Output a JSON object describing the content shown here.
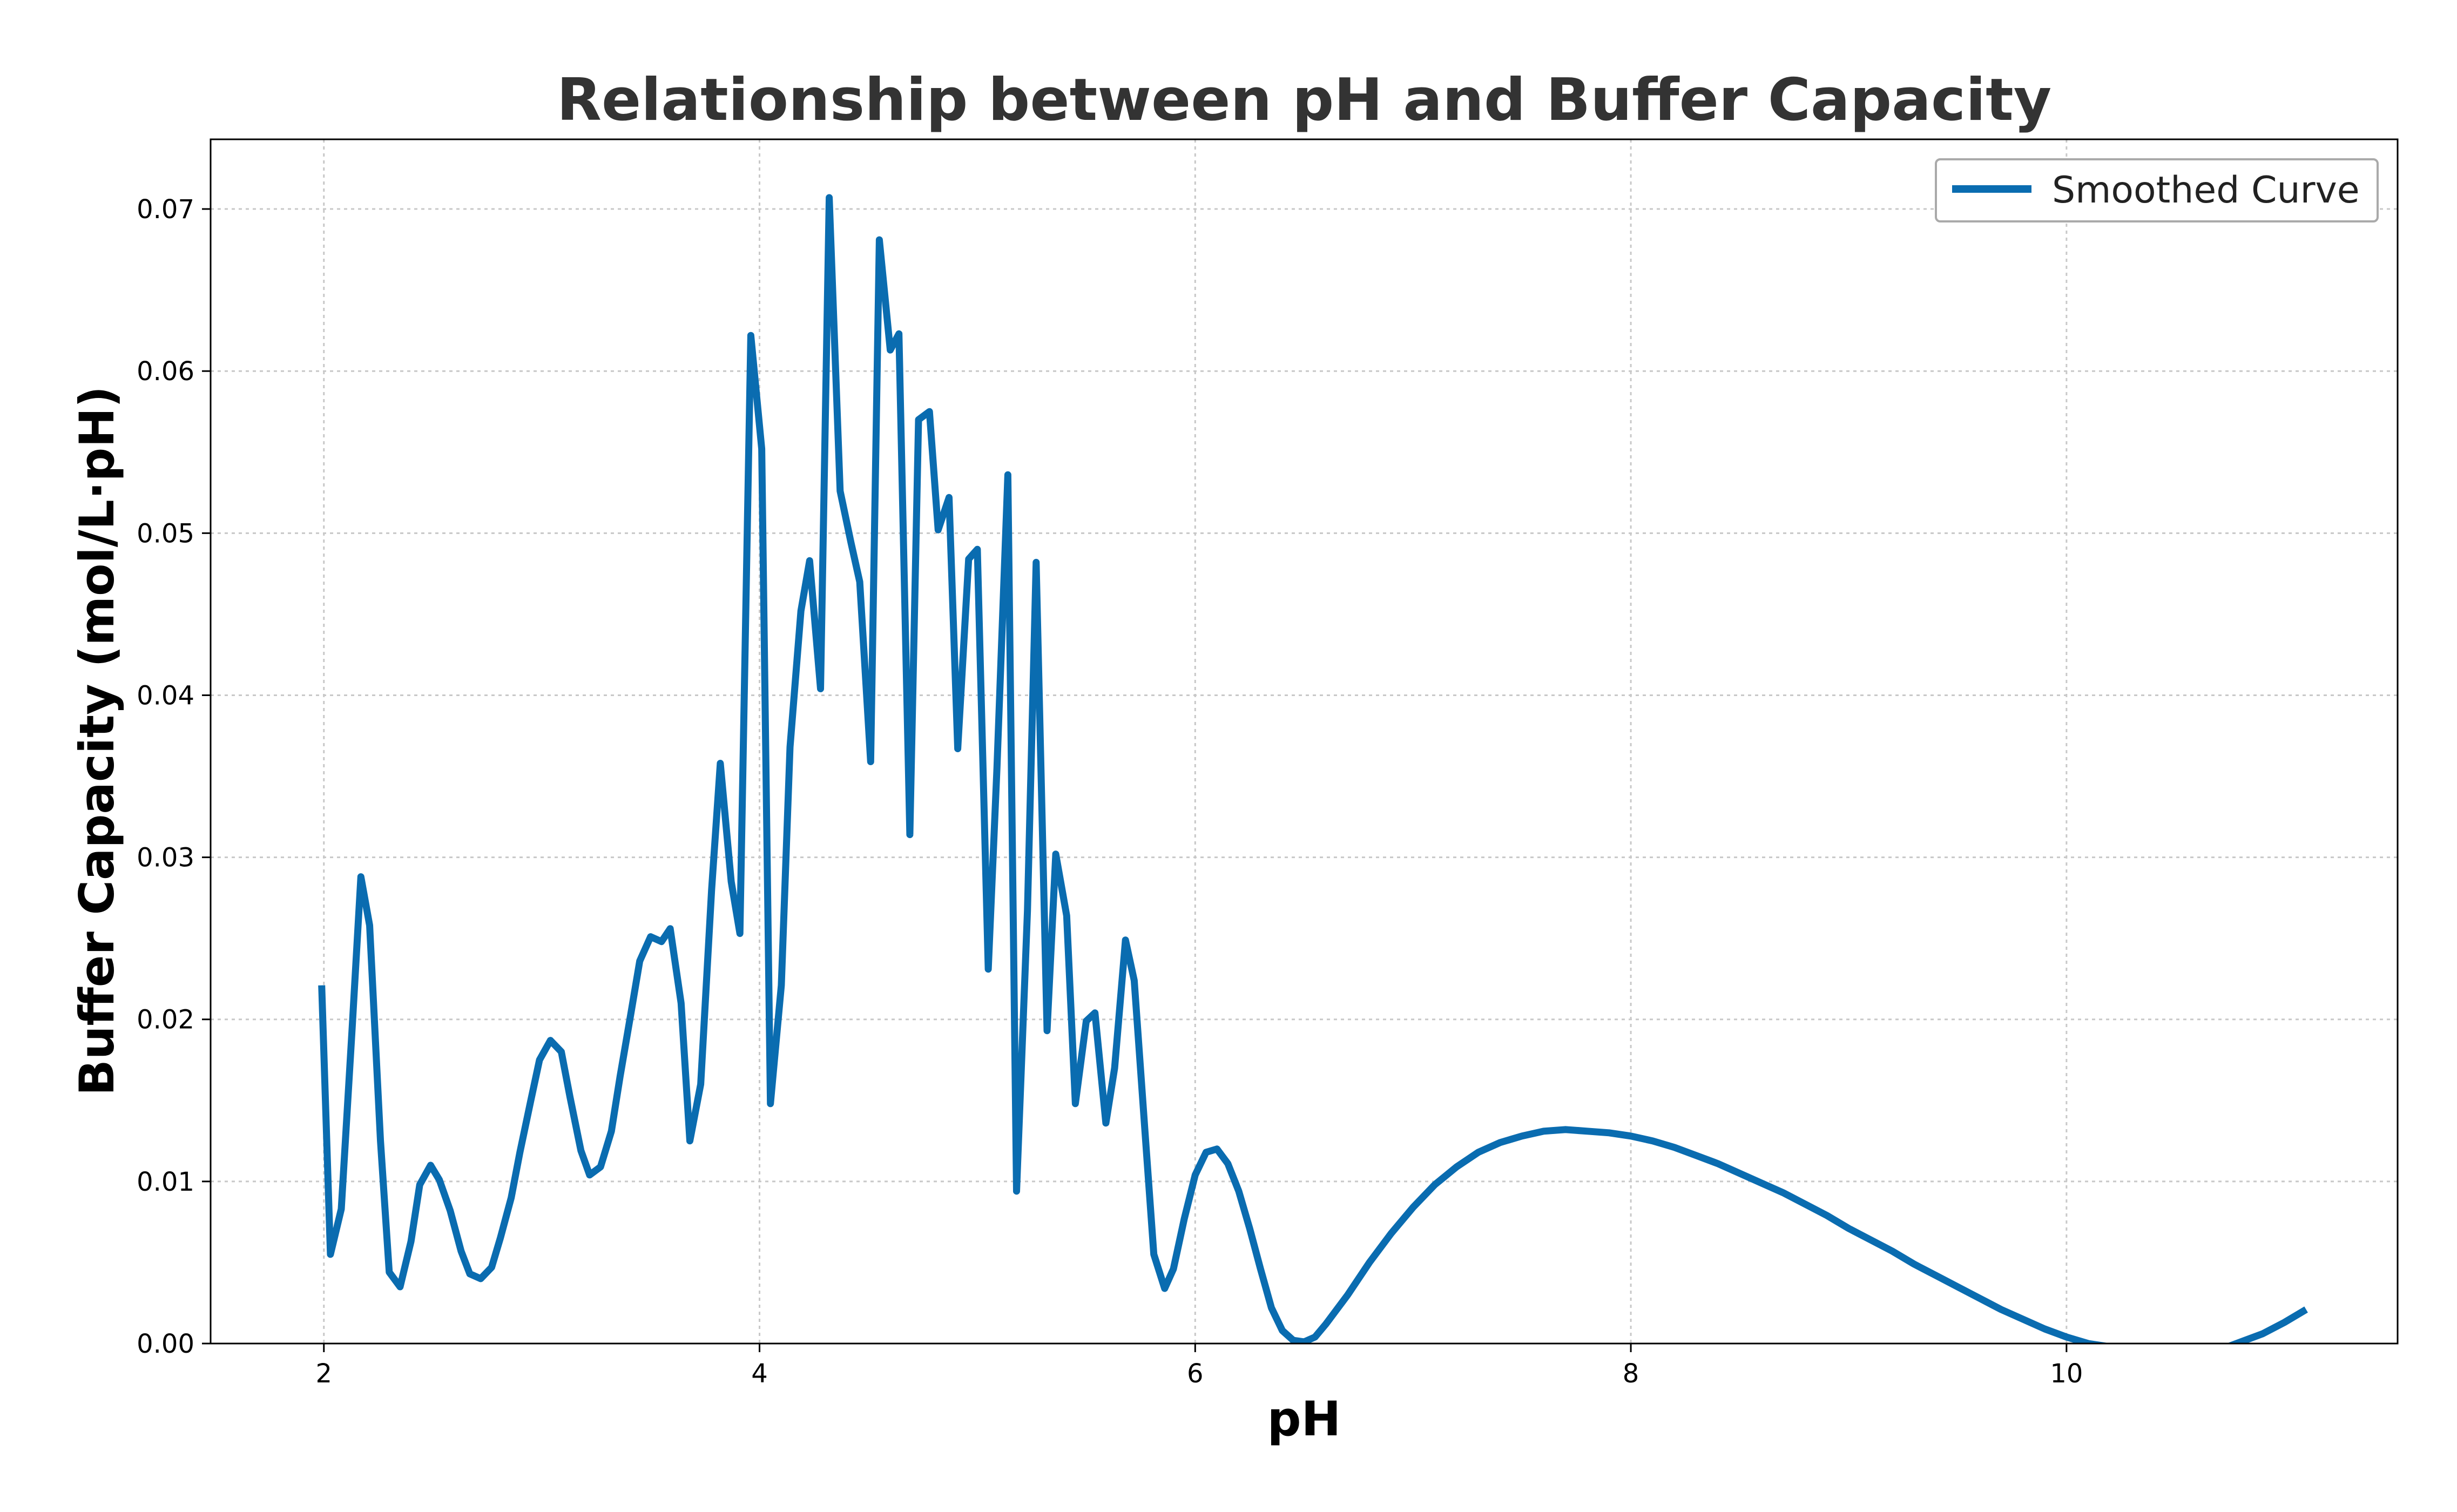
{
  "chart_data": {
    "type": "line",
    "title": "Relationship between pH and Buffer Capacity",
    "xlabel": "pH",
    "ylabel": "Buffer Capacity (mol/L·pH)",
    "xlim": [
      1.48,
      11.52
    ],
    "ylim": [
      0.0,
      0.0743
    ],
    "x_ticks": [
      2,
      4,
      6,
      8,
      10
    ],
    "y_ticks": [
      0.0,
      0.01,
      0.02,
      0.03,
      0.04,
      0.05,
      0.06,
      0.07
    ],
    "x_tick_labels": [
      "2",
      "4",
      "6",
      "8",
      "10"
    ],
    "y_tick_labels": [
      "0.00",
      "0.01",
      "0.02",
      "0.03",
      "0.04",
      "0.05",
      "0.06",
      "0.07"
    ],
    "grid": true,
    "legend_position": "top-right",
    "series": [
      {
        "name": "Smoothed Curve",
        "color": "#0a6cb0",
        "points": [
          [
            1.99,
            0.0221
          ],
          [
            2.03,
            0.0055
          ],
          [
            2.08,
            0.0083
          ],
          [
            2.13,
            0.0195
          ],
          [
            2.17,
            0.0288
          ],
          [
            2.21,
            0.0258
          ],
          [
            2.26,
            0.0125
          ],
          [
            2.3,
            0.0044
          ],
          [
            2.35,
            0.0035
          ],
          [
            2.4,
            0.0063
          ],
          [
            2.44,
            0.0098
          ],
          [
            2.49,
            0.011
          ],
          [
            2.53,
            0.0101
          ],
          [
            2.58,
            0.0082
          ],
          [
            2.63,
            0.0057
          ],
          [
            2.67,
            0.0043
          ],
          [
            2.72,
            0.004
          ],
          [
            2.77,
            0.0047
          ],
          [
            2.81,
            0.0065
          ],
          [
            2.86,
            0.009
          ],
          [
            2.9,
            0.0118
          ],
          [
            2.95,
            0.015
          ],
          [
            2.99,
            0.0175
          ],
          [
            3.04,
            0.0187
          ],
          [
            3.09,
            0.018
          ],
          [
            3.13,
            0.0152
          ],
          [
            3.18,
            0.0119
          ],
          [
            3.22,
            0.0104
          ],
          [
            3.27,
            0.0109
          ],
          [
            3.32,
            0.0131
          ],
          [
            3.36,
            0.0165
          ],
          [
            3.41,
            0.0204
          ],
          [
            3.45,
            0.0236
          ],
          [
            3.5,
            0.0251
          ],
          [
            3.55,
            0.0248
          ],
          [
            3.59,
            0.0256
          ],
          [
            3.64,
            0.021
          ],
          [
            3.68,
            0.0125
          ],
          [
            3.73,
            0.016
          ],
          [
            3.78,
            0.028
          ],
          [
            3.82,
            0.0358
          ],
          [
            3.87,
            0.0285
          ],
          [
            3.91,
            0.0253
          ],
          [
            3.96,
            0.0622
          ],
          [
            4.01,
            0.0552
          ],
          [
            4.05,
            0.0148
          ],
          [
            4.1,
            0.0221
          ],
          [
            4.14,
            0.0368
          ],
          [
            4.19,
            0.0452
          ],
          [
            4.23,
            0.0483
          ],
          [
            4.28,
            0.0404
          ],
          [
            4.32,
            0.0707
          ],
          [
            4.37,
            0.0526
          ],
          [
            4.42,
            0.0494
          ],
          [
            4.46,
            0.047
          ],
          [
            4.51,
            0.0359
          ],
          [
            4.55,
            0.0681
          ],
          [
            4.6,
            0.0613
          ],
          [
            4.64,
            0.0623
          ],
          [
            4.69,
            0.0314
          ],
          [
            4.73,
            0.057
          ],
          [
            4.78,
            0.0575
          ],
          [
            4.82,
            0.0502
          ],
          [
            4.87,
            0.0522
          ],
          [
            4.91,
            0.0367
          ],
          [
            4.96,
            0.0484
          ],
          [
            5.0,
            0.049
          ],
          [
            5.05,
            0.0231
          ],
          [
            5.09,
            0.0355
          ],
          [
            5.14,
            0.0536
          ],
          [
            5.18,
            0.0094
          ],
          [
            5.23,
            0.0267
          ],
          [
            5.27,
            0.0482
          ],
          [
            5.32,
            0.0193
          ],
          [
            5.36,
            0.0302
          ],
          [
            5.41,
            0.0264
          ],
          [
            5.45,
            0.0148
          ],
          [
            5.5,
            0.0199
          ],
          [
            5.54,
            0.0204
          ],
          [
            5.59,
            0.0136
          ],
          [
            5.63,
            0.017
          ],
          [
            5.68,
            0.0249
          ],
          [
            5.72,
            0.0224
          ],
          [
            5.77,
            0.013
          ],
          [
            5.81,
            0.0055
          ],
          [
            5.86,
            0.0034
          ],
          [
            5.9,
            0.0046
          ],
          [
            5.95,
            0.0077
          ],
          [
            6.0,
            0.0104
          ],
          [
            6.05,
            0.0118
          ],
          [
            6.1,
            0.012
          ],
          [
            6.15,
            0.0111
          ],
          [
            6.2,
            0.0094
          ],
          [
            6.25,
            0.0071
          ],
          [
            6.3,
            0.0046
          ],
          [
            6.35,
            0.0022
          ],
          [
            6.4,
            0.0008
          ],
          [
            6.45,
            0.0002
          ],
          [
            6.5,
            0.0001
          ],
          [
            6.55,
            0.0004
          ],
          [
            6.6,
            0.0012
          ],
          [
            6.7,
            0.003
          ],
          [
            6.8,
            0.005
          ],
          [
            6.9,
            0.0068
          ],
          [
            7.0,
            0.0084
          ],
          [
            7.1,
            0.0098
          ],
          [
            7.2,
            0.0109
          ],
          [
            7.3,
            0.0118
          ],
          [
            7.4,
            0.0124
          ],
          [
            7.5,
            0.0128
          ],
          [
            7.6,
            0.0131
          ],
          [
            7.7,
            0.0132
          ],
          [
            7.8,
            0.0131
          ],
          [
            7.9,
            0.013
          ],
          [
            8.0,
            0.0128
          ],
          [
            8.1,
            0.0125
          ],
          [
            8.2,
            0.0121
          ],
          [
            8.3,
            0.0116
          ],
          [
            8.4,
            0.0111
          ],
          [
            8.5,
            0.0105
          ],
          [
            8.6,
            0.0099
          ],
          [
            8.7,
            0.0093
          ],
          [
            8.8,
            0.0086
          ],
          [
            8.9,
            0.0079
          ],
          [
            9.0,
            0.0071
          ],
          [
            9.1,
            0.0064
          ],
          [
            9.2,
            0.0057
          ],
          [
            9.3,
            0.0049
          ],
          [
            9.4,
            0.0042
          ],
          [
            9.5,
            0.0035
          ],
          [
            9.6,
            0.0028
          ],
          [
            9.7,
            0.0021
          ],
          [
            9.8,
            0.0015
          ],
          [
            9.9,
            0.0009
          ],
          [
            10.0,
            0.0004
          ],
          [
            10.05,
            0.0002
          ],
          [
            10.1,
            0.0
          ],
          [
            10.2,
            -0.0002
          ],
          [
            10.3,
            -0.0004
          ],
          [
            10.4,
            -0.0006
          ],
          [
            10.5,
            -0.0007
          ],
          [
            10.6,
            -0.0006
          ],
          [
            10.7,
            -0.0004
          ],
          [
            10.8,
            0.0001
          ],
          [
            10.9,
            0.0006
          ],
          [
            11.0,
            0.0013
          ],
          [
            11.1,
            0.0021
          ]
        ]
      }
    ]
  }
}
